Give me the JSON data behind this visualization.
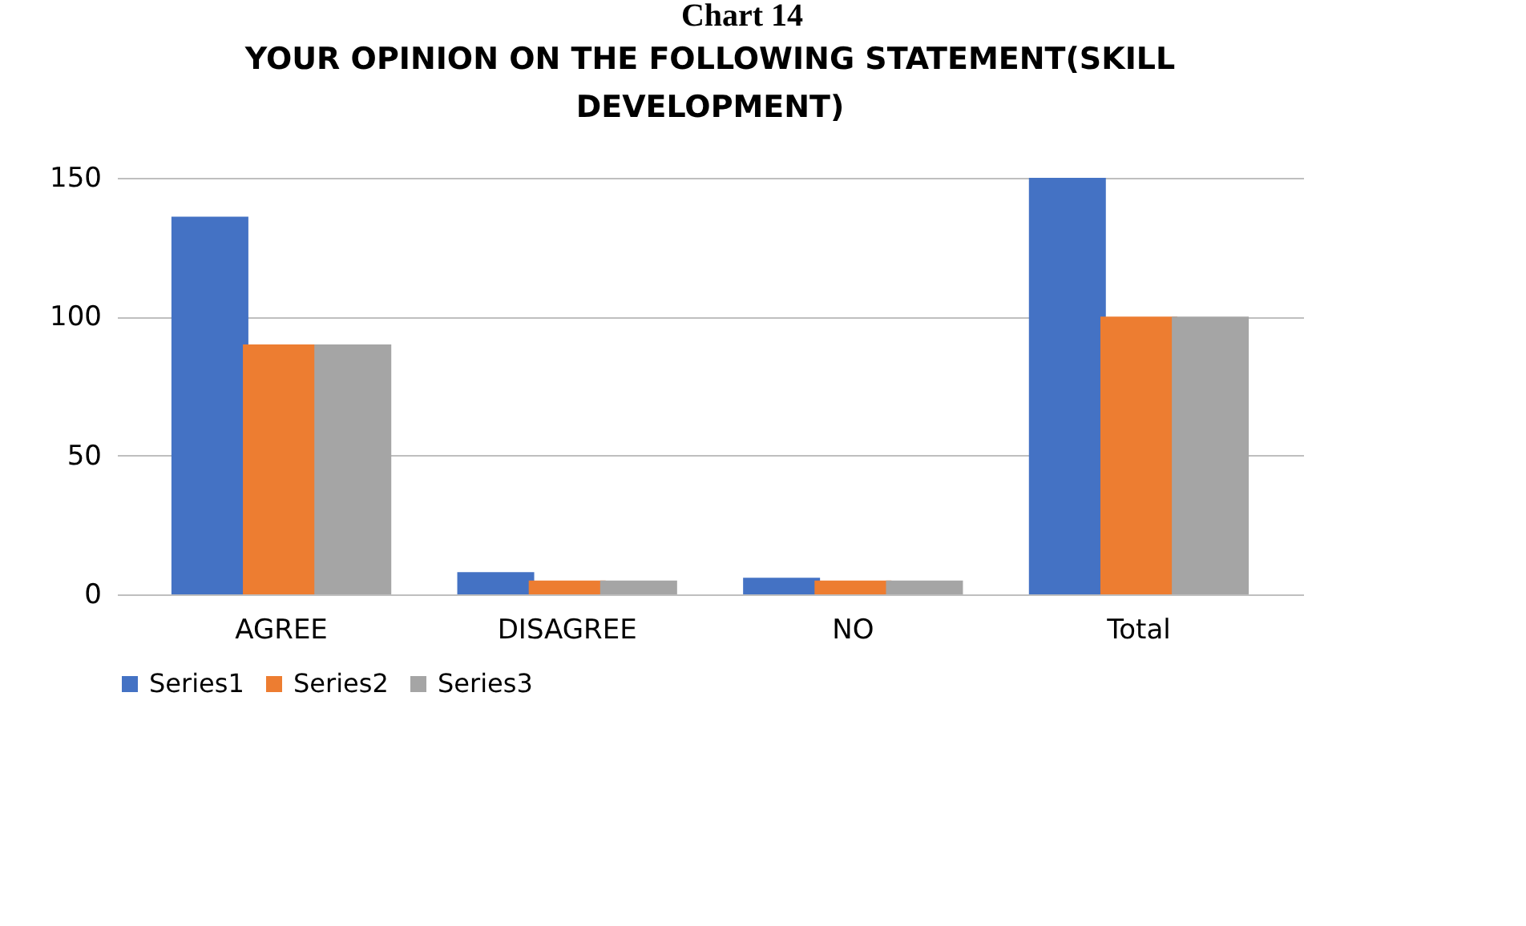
{
  "chart_data": {
    "type": "bar",
    "title": "YOUR OPINION ON THE FOLLOWING STATEMENT(SKILL DEVELOPMENT)",
    "annotations": [
      "Chart 14"
    ],
    "categories": [
      "AGREE",
      "DISAGREE",
      "NO",
      "Total"
    ],
    "series": [
      {
        "name": "Series1",
        "color": "#4472c4",
        "values": [
          136,
          8,
          6,
          150
        ]
      },
      {
        "name": "Series2",
        "color": "#ed7d31",
        "values": [
          90,
          5,
          5,
          100
        ]
      },
      {
        "name": "Series3",
        "color": "#a5a5a5",
        "values": [
          90,
          5,
          5,
          100
        ]
      }
    ],
    "ylim": [
      0,
      150
    ],
    "yticks": [
      0,
      50,
      100,
      150
    ],
    "grid": "y",
    "legend": "bottom"
  }
}
